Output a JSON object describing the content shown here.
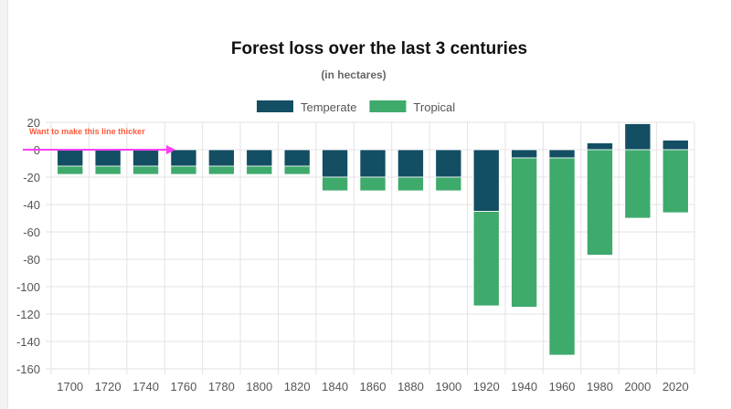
{
  "chart_data": {
    "type": "bar",
    "stacked": true,
    "title": "Forest loss over the last 3 centuries",
    "subtitle": "(in hectares)",
    "xlabel": "",
    "ylabel": "",
    "ylim": [
      -160,
      20
    ],
    "yticks": [
      20,
      0,
      -20,
      -40,
      -60,
      -80,
      -100,
      -120,
      -140,
      -160
    ],
    "grid": true,
    "legend": "top",
    "categories": [
      "1700",
      "1720",
      "1740",
      "1760",
      "1780",
      "1800",
      "1820",
      "1840",
      "1860",
      "1880",
      "1900",
      "1920",
      "1940",
      "1960",
      "1980",
      "2000",
      "2020"
    ],
    "series": [
      {
        "name": "Temperate",
        "color": "#134e63",
        "values": [
          -12,
          -12,
          -12,
          -12,
          -12,
          -12,
          -12,
          -20,
          -20,
          -20,
          -20,
          -45,
          -6,
          -6,
          5,
          19,
          7
        ]
      },
      {
        "name": "Tropical",
        "color": "#3eaa6c",
        "values": [
          -6,
          -6,
          -6,
          -6,
          -6,
          -6,
          -6,
          -10,
          -10,
          -10,
          -10,
          -69,
          -109,
          -144,
          -77,
          -50,
          -46
        ]
      }
    ],
    "annotation": {
      "text": "Want to make this line thicker",
      "color": "#ff5a3c",
      "arrow_color": "#ff3df5",
      "points_at_y": 0
    }
  }
}
